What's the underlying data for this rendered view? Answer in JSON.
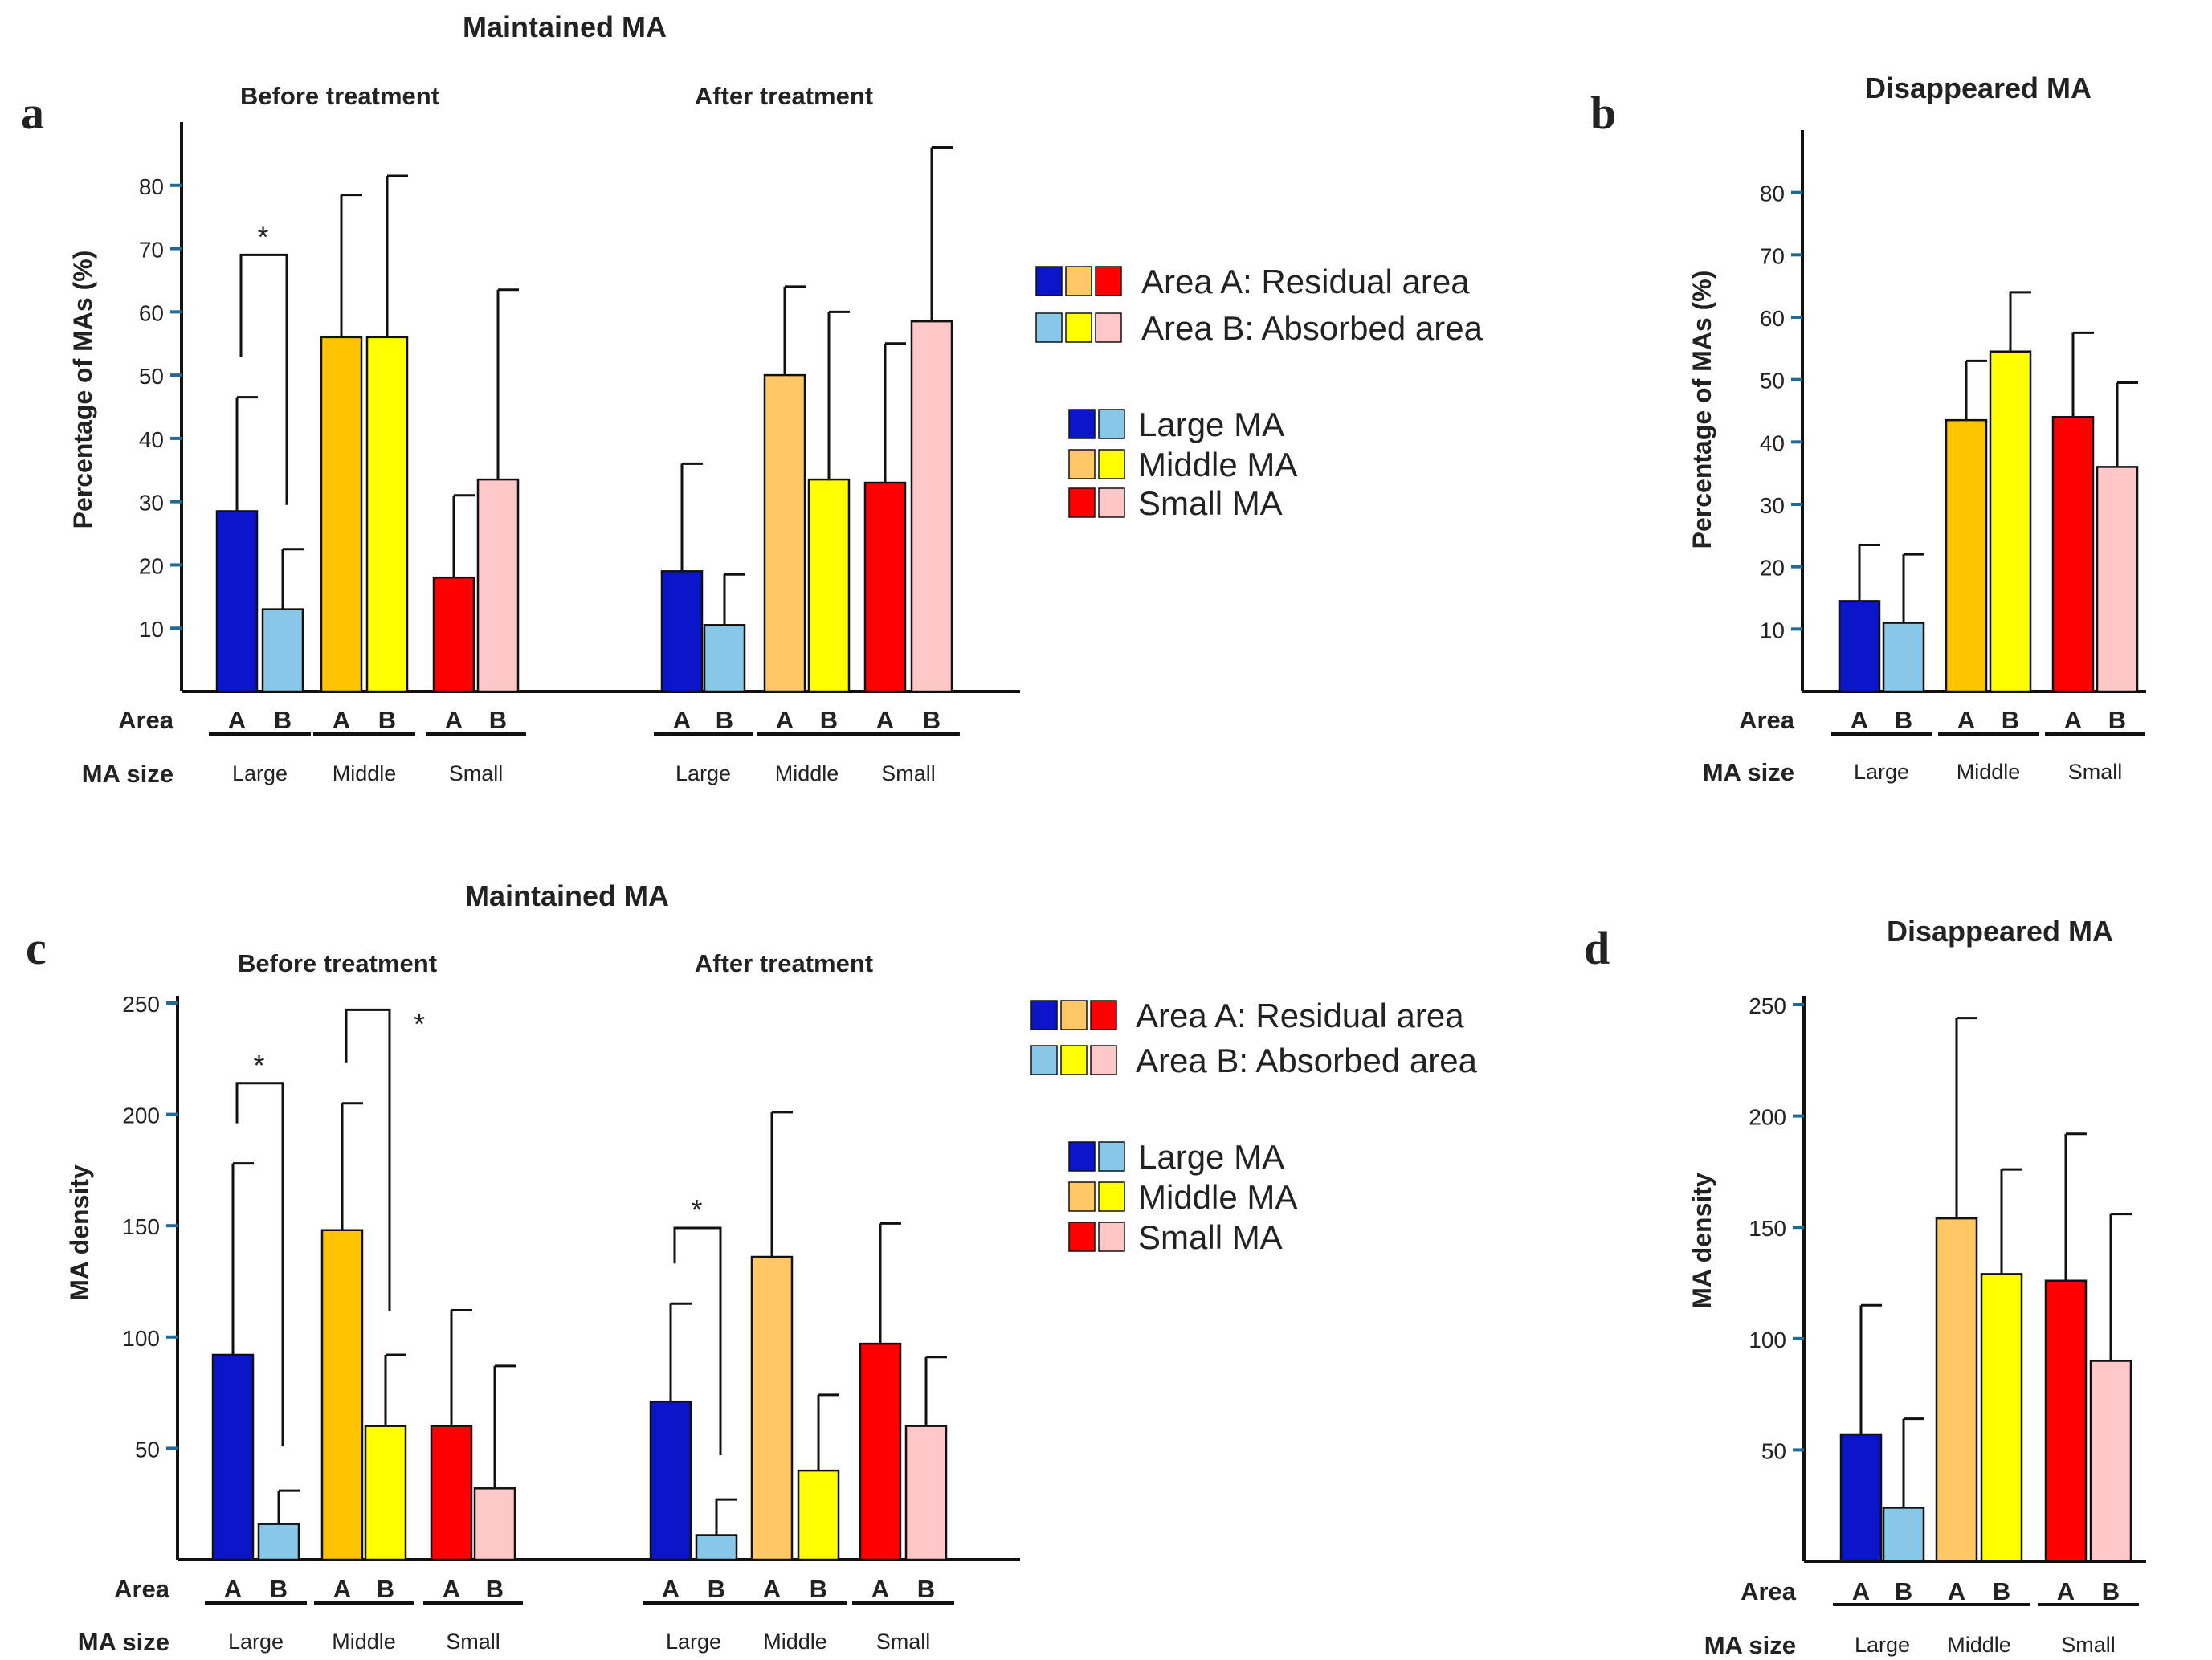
{
  "colors": {
    "large_a": "#0a14c8",
    "large_b": "#87c8e8",
    "middle_a_dark": "#ffc400",
    "middle_a_light": "#ffc864",
    "middle_b": "#ffff00",
    "small_a": "#ff0000",
    "small_b": "#ffc8c8",
    "tick": "#1f6a96",
    "axis": "#111111"
  },
  "legend": {
    "area_a": "Area A: Residual area",
    "area_b": "Area B: Absorbed area",
    "large": "Large MA",
    "middle": "Middle MA",
    "small": "Small MA"
  },
  "common": {
    "area_label": "Area",
    "size_label": "MA size",
    "letter_a": "A",
    "letter_b": "B",
    "size_large": "Large",
    "size_middle": "Middle",
    "size_small": "Small"
  },
  "chart_data": [
    {
      "panel": "a",
      "type": "bar",
      "title": "Maintained MA",
      "ylabel": "Percentage of MAs (%)",
      "ylim": [
        0,
        90
      ],
      "yticks": [
        10,
        20,
        30,
        40,
        50,
        60,
        70,
        80
      ],
      "groups": [
        {
          "label": "Before treatment",
          "categories": [
            "Large",
            "Middle",
            "Small"
          ],
          "series": [
            {
              "size": "Large",
              "area": "A",
              "color": "large_a",
              "value": 28.5,
              "error": 18
            },
            {
              "size": "Large",
              "area": "B",
              "color": "large_b",
              "value": 13,
              "error": 9.5
            },
            {
              "size": "Middle",
              "area": "A",
              "color": "middle_a_dark",
              "value": 56,
              "error": 22.5
            },
            {
              "size": "Middle",
              "area": "B",
              "color": "middle_b",
              "value": 56,
              "error": 25.5
            },
            {
              "size": "Small",
              "area": "A",
              "color": "small_a",
              "value": 18,
              "error": 13
            },
            {
              "size": "Small",
              "area": "B",
              "color": "small_b",
              "value": 33.5,
              "error": 30
            }
          ],
          "significance": [
            {
              "label": "*",
              "between": [
                0,
                1
              ],
              "level": 69
            }
          ]
        },
        {
          "label": "After treatment",
          "categories": [
            "Large",
            "Middle",
            "Small"
          ],
          "series": [
            {
              "size": "Large",
              "area": "A",
              "color": "large_a",
              "value": 19,
              "error": 17
            },
            {
              "size": "Large",
              "area": "B",
              "color": "large_b",
              "value": 10.5,
              "error": 8
            },
            {
              "size": "Middle",
              "area": "A",
              "color": "middle_a_light",
              "value": 50,
              "error": 14
            },
            {
              "size": "Middle",
              "area": "B",
              "color": "middle_b",
              "value": 33.5,
              "error": 26.5
            },
            {
              "size": "Small",
              "area": "A",
              "color": "small_a",
              "value": 33,
              "error": 22
            },
            {
              "size": "Small",
              "area": "B",
              "color": "small_b",
              "value": 58.5,
              "error": 27.5
            }
          ],
          "significance": []
        }
      ]
    },
    {
      "panel": "b",
      "type": "bar",
      "title": "Disappeared MA",
      "ylabel": "Percentage of MAs (%)",
      "ylim": [
        0,
        90
      ],
      "yticks": [
        10,
        20,
        30,
        40,
        50,
        60,
        70,
        80
      ],
      "groups": [
        {
          "label": "",
          "categories": [
            "Large",
            "Middle",
            "Small"
          ],
          "series": [
            {
              "size": "Large",
              "area": "A",
              "color": "large_a",
              "value": 14.5,
              "error": 9
            },
            {
              "size": "Large",
              "area": "B",
              "color": "large_b",
              "value": 11,
              "error": 11
            },
            {
              "size": "Middle",
              "area": "A",
              "color": "middle_a_dark",
              "value": 43.5,
              "error": 9.5
            },
            {
              "size": "Middle",
              "area": "B",
              "color": "middle_b",
              "value": 54.5,
              "error": 9.5
            },
            {
              "size": "Small",
              "area": "A",
              "color": "small_a",
              "value": 44,
              "error": 13.5
            },
            {
              "size": "Small",
              "area": "B",
              "color": "small_b",
              "value": 36,
              "error": 13.5
            }
          ],
          "significance": []
        }
      ]
    },
    {
      "panel": "c",
      "type": "bar",
      "title": "Maintained MA",
      "ylabel": "MA density",
      "ylim": [
        0,
        250
      ],
      "yticks": [
        50,
        100,
        150,
        200,
        250
      ],
      "groups": [
        {
          "label": "Before treatment",
          "categories": [
            "Large",
            "Middle",
            "Small"
          ],
          "series": [
            {
              "size": "Large",
              "area": "A",
              "color": "large_a",
              "value": 92,
              "error": 86
            },
            {
              "size": "Large",
              "area": "B",
              "color": "large_b",
              "value": 16,
              "error": 15
            },
            {
              "size": "Middle",
              "area": "A",
              "color": "middle_a_dark",
              "value": 148,
              "error": 57
            },
            {
              "size": "Middle",
              "area": "B",
              "color": "middle_b",
              "value": 60,
              "error": 32
            },
            {
              "size": "Small",
              "area": "A",
              "color": "small_a",
              "value": 60,
              "error": 52
            },
            {
              "size": "Small",
              "area": "B",
              "color": "small_b",
              "value": 32,
              "error": 55
            }
          ],
          "significance": [
            {
              "label": "*",
              "between": [
                0,
                1
              ],
              "level": 214
            },
            {
              "label": "*",
              "between": [
                2,
                3
              ],
              "level": 247
            }
          ]
        },
        {
          "label": "After treatment",
          "categories": [
            "Large",
            "Middle",
            "Small"
          ],
          "series": [
            {
              "size": "Large",
              "area": "A",
              "color": "large_a",
              "value": 71,
              "error": 44
            },
            {
              "size": "Large",
              "area": "B",
              "color": "large_b",
              "value": 11,
              "error": 16
            },
            {
              "size": "Middle",
              "area": "A",
              "color": "middle_a_light",
              "value": 136,
              "error": 65
            },
            {
              "size": "Middle",
              "area": "B",
              "color": "middle_b",
              "value": 40,
              "error": 34
            },
            {
              "size": "Small",
              "area": "A",
              "color": "small_a",
              "value": 97,
              "error": 54
            },
            {
              "size": "Small",
              "area": "B",
              "color": "small_b",
              "value": 60,
              "error": 31
            }
          ],
          "significance": [
            {
              "label": "*",
              "between": [
                0,
                1
              ],
              "level": 149
            }
          ]
        }
      ]
    },
    {
      "panel": "d",
      "type": "bar",
      "title": "Disappeared MA",
      "ylabel": "MA density",
      "ylim": [
        0,
        250
      ],
      "yticks": [
        50,
        100,
        150,
        200,
        250
      ],
      "groups": [
        {
          "label": "",
          "categories": [
            "Large",
            "Middle",
            "Small"
          ],
          "series": [
            {
              "size": "Large",
              "area": "A",
              "color": "large_a",
              "value": 57,
              "error": 58
            },
            {
              "size": "Large",
              "area": "B",
              "color": "large_b",
              "value": 24,
              "error": 40
            },
            {
              "size": "Middle",
              "area": "A",
              "color": "middle_a_light",
              "value": 154,
              "error": 90
            },
            {
              "size": "Middle",
              "area": "B",
              "color": "middle_b",
              "value": 129,
              "error": 47
            },
            {
              "size": "Small",
              "area": "A",
              "color": "small_a",
              "value": 126,
              "error": 66
            },
            {
              "size": "Small",
              "area": "B",
              "color": "small_b",
              "value": 90,
              "error": 66
            }
          ],
          "significance": []
        }
      ]
    }
  ]
}
